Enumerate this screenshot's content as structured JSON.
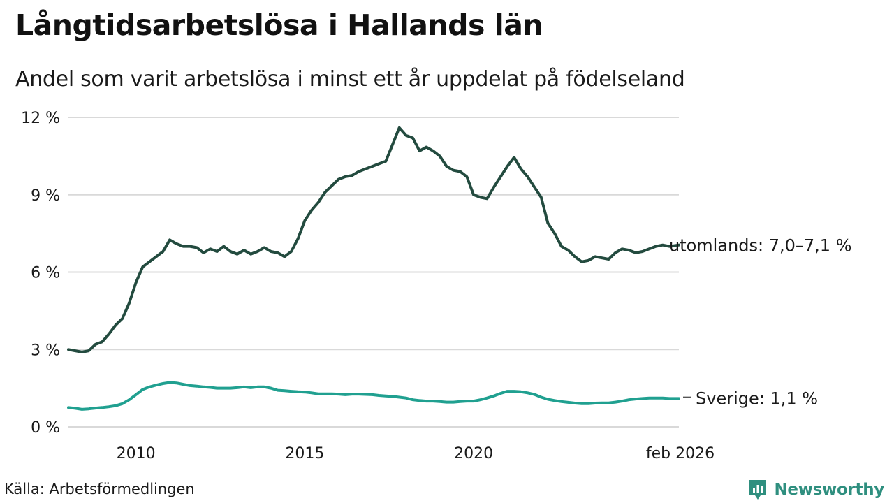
{
  "header": {
    "title": "Långtidsarbetslösa i Hallands län",
    "subtitle": "Andel som varit arbetslösa i minst ett år uppdelat på födelseland"
  },
  "footer": {
    "source": "Källa: Arbetsförmedlingen",
    "brand": "Newsworthy",
    "brand_icon": "bar-chart-logo-icon"
  },
  "colors": {
    "utomlands": "#234b3f",
    "sverige": "#20a090",
    "grid": "#d9d9d9",
    "brand": "#2f8f7f"
  },
  "chart_data": {
    "type": "line",
    "title": "Långtidsarbetslösa i Hallands län",
    "subtitle": "Andel som varit arbetslösa i minst ett år uppdelat på födelseland",
    "xlabel": "",
    "ylabel": "",
    "xlim": [
      2008.0,
      2026.08
    ],
    "ylim": [
      0,
      12
    ],
    "grid": true,
    "legend": "direct labels at line ends",
    "x_ticks": [
      {
        "value": 2010,
        "label": "2010"
      },
      {
        "value": 2015,
        "label": "2015"
      },
      {
        "value": 2020,
        "label": "2020"
      },
      {
        "value": 2026.08,
        "label": "feb 2026"
      }
    ],
    "y_ticks": [
      {
        "value": 0,
        "label": "0 %"
      },
      {
        "value": 3,
        "label": "3 %"
      },
      {
        "value": 6,
        "label": "6 %"
      },
      {
        "value": 9,
        "label": "9 %"
      },
      {
        "value": 12,
        "label": "12 %"
      }
    ],
    "series": [
      {
        "name": "utomlands",
        "end_label": "utomlands: 7,0–7,1 %",
        "x": [
          2008.0,
          2008.2,
          2008.4,
          2008.6,
          2008.8,
          2009.0,
          2009.2,
          2009.4,
          2009.6,
          2009.8,
          2010.0,
          2010.2,
          2010.4,
          2010.6,
          2010.8,
          2011.0,
          2011.2,
          2011.4,
          2011.6,
          2011.8,
          2012.0,
          2012.2,
          2012.4,
          2012.6,
          2012.8,
          2013.0,
          2013.2,
          2013.4,
          2013.6,
          2013.8,
          2014.0,
          2014.2,
          2014.4,
          2014.6,
          2014.8,
          2015.0,
          2015.2,
          2015.4,
          2015.6,
          2015.8,
          2016.0,
          2016.2,
          2016.4,
          2016.6,
          2016.8,
          2017.0,
          2017.2,
          2017.4,
          2017.6,
          2017.8,
          2018.0,
          2018.2,
          2018.4,
          2018.6,
          2018.8,
          2019.0,
          2019.2,
          2019.4,
          2019.6,
          2019.8,
          2020.0,
          2020.2,
          2020.4,
          2020.6,
          2020.8,
          2021.0,
          2021.2,
          2021.4,
          2021.6,
          2021.8,
          2022.0,
          2022.2,
          2022.4,
          2022.6,
          2022.8,
          2023.0,
          2023.2,
          2023.4,
          2023.6,
          2023.8,
          2024.0,
          2024.2,
          2024.4,
          2024.6,
          2024.8,
          2025.0,
          2025.2,
          2025.4,
          2025.6,
          2025.8,
          2026.08
        ],
        "values": [
          3.0,
          2.95,
          2.9,
          2.95,
          3.2,
          3.3,
          3.6,
          3.95,
          4.2,
          4.8,
          5.6,
          6.2,
          6.4,
          6.6,
          6.8,
          7.25,
          7.1,
          7.0,
          7.0,
          6.95,
          6.75,
          6.9,
          6.8,
          7.0,
          6.8,
          6.7,
          6.85,
          6.7,
          6.8,
          6.95,
          6.8,
          6.75,
          6.6,
          6.8,
          7.3,
          8.0,
          8.4,
          8.7,
          9.1,
          9.35,
          9.6,
          9.7,
          9.75,
          9.9,
          10.0,
          10.1,
          10.2,
          10.3,
          10.95,
          11.6,
          11.3,
          11.2,
          10.7,
          10.85,
          10.7,
          10.5,
          10.1,
          9.95,
          9.9,
          9.7,
          9.0,
          8.9,
          8.85,
          9.3,
          9.7,
          10.1,
          10.45,
          10.0,
          9.7,
          9.3,
          8.9,
          7.9,
          7.5,
          7.0,
          6.85,
          6.6,
          6.4,
          6.45,
          6.6,
          6.55,
          6.5,
          6.75,
          6.9,
          6.85,
          6.75,
          6.8,
          6.9,
          7.0,
          7.05,
          7.0,
          7.05
        ]
      },
      {
        "name": "Sverige",
        "end_label": "Sverige: 1,1 %",
        "x": [
          2008.0,
          2008.2,
          2008.4,
          2008.6,
          2008.8,
          2009.0,
          2009.2,
          2009.4,
          2009.6,
          2009.8,
          2010.0,
          2010.2,
          2010.4,
          2010.6,
          2010.8,
          2011.0,
          2011.2,
          2011.4,
          2011.6,
          2011.8,
          2012.0,
          2012.2,
          2012.4,
          2012.6,
          2012.8,
          2013.0,
          2013.2,
          2013.4,
          2013.6,
          2013.8,
          2014.0,
          2014.2,
          2014.4,
          2014.6,
          2014.8,
          2015.0,
          2015.2,
          2015.4,
          2015.6,
          2015.8,
          2016.0,
          2016.2,
          2016.4,
          2016.6,
          2016.8,
          2017.0,
          2017.2,
          2017.4,
          2017.6,
          2017.8,
          2018.0,
          2018.2,
          2018.4,
          2018.6,
          2018.8,
          2019.0,
          2019.2,
          2019.4,
          2019.6,
          2019.8,
          2020.0,
          2020.2,
          2020.4,
          2020.6,
          2020.8,
          2021.0,
          2021.2,
          2021.4,
          2021.6,
          2021.8,
          2022.0,
          2022.2,
          2022.4,
          2022.6,
          2022.8,
          2023.0,
          2023.2,
          2023.4,
          2023.6,
          2023.8,
          2024.0,
          2024.2,
          2024.4,
          2024.6,
          2024.8,
          2025.0,
          2025.2,
          2025.4,
          2025.6,
          2025.8,
          2026.08
        ],
        "values": [
          0.75,
          0.72,
          0.68,
          0.7,
          0.73,
          0.75,
          0.78,
          0.82,
          0.9,
          1.05,
          1.25,
          1.45,
          1.55,
          1.62,
          1.68,
          1.72,
          1.7,
          1.65,
          1.6,
          1.58,
          1.55,
          1.53,
          1.5,
          1.5,
          1.5,
          1.52,
          1.55,
          1.52,
          1.55,
          1.55,
          1.5,
          1.42,
          1.4,
          1.38,
          1.36,
          1.35,
          1.32,
          1.28,
          1.28,
          1.28,
          1.27,
          1.25,
          1.27,
          1.27,
          1.26,
          1.25,
          1.22,
          1.2,
          1.18,
          1.15,
          1.12,
          1.05,
          1.02,
          1.0,
          1.0,
          0.98,
          0.96,
          0.96,
          0.98,
          1.0,
          1.0,
          1.05,
          1.12,
          1.2,
          1.3,
          1.38,
          1.38,
          1.36,
          1.32,
          1.26,
          1.15,
          1.07,
          1.02,
          0.98,
          0.95,
          0.92,
          0.9,
          0.9,
          0.92,
          0.93,
          0.93,
          0.96,
          1.0,
          1.05,
          1.08,
          1.1,
          1.12,
          1.12,
          1.12,
          1.1,
          1.1
        ]
      }
    ]
  }
}
